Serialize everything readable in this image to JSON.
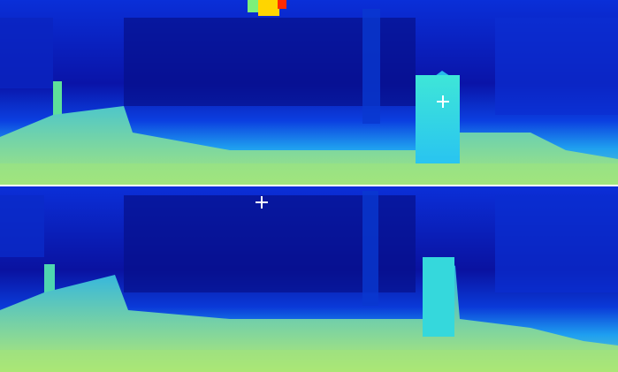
{
  "image": {
    "panels": [
      {
        "name": "depth-map-top",
        "colormap": "jet",
        "marker": "plus"
      },
      {
        "name": "depth-map-bottom",
        "colormap": "jet",
        "marker": "plus"
      }
    ],
    "colors": {
      "far": "#00009a",
      "mid": "#0a3df0",
      "near": "#2fb5e8",
      "closest": "#b8e86a",
      "hot": "#ff2a00",
      "marker": "#ffffff"
    }
  }
}
